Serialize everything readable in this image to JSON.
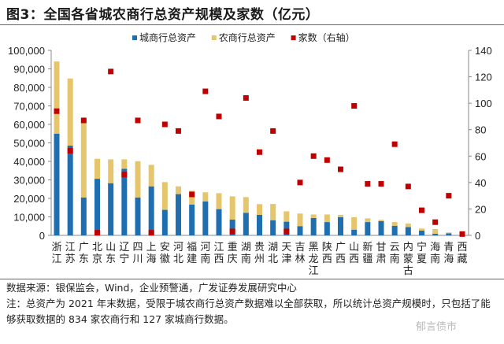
{
  "title": "图3：全国各省城农商行总资产规模及家数（亿元）",
  "source": "数据来源：银保监会，Wind，企业预警通，广发证券发展研究中心",
  "note": "注：总资产为 2021 年末数据，受限于城农商行总资产数据难以全部获取，所以统计总资产规模时，只包括了能够获取数据的 834 家农商行和 127 家城商行数据。",
  "watermark": "郁言债市",
  "chart_data": {
    "type": "bar",
    "stacked": true,
    "categories": [
      "浙江",
      "江苏",
      "广东",
      "北京",
      "山东",
      "辽宁",
      "四川",
      "上海",
      "安徽",
      "河北",
      "福建",
      "河南",
      "江西",
      "重庆",
      "湖南",
      "贵州",
      "湖北",
      "天津",
      "吉林",
      "黑龙江",
      "陕西",
      "广西",
      "山西",
      "新疆",
      "甘肃",
      "云南",
      "内蒙古",
      "宁夏",
      "海南",
      "青海",
      "西藏"
    ],
    "series": [
      {
        "name": "城商行总资产",
        "color": "#1f6eb0",
        "axis": "left",
        "type": "bar",
        "values": [
          55000,
          48500,
          20500,
          30600,
          28200,
          36000,
          20500,
          26500,
          13800,
          22300,
          16700,
          18300,
          14200,
          8500,
          12200,
          11100,
          8200,
          7400,
          5000,
          9400,
          7200,
          9800,
          3100,
          7200,
          7700,
          5200,
          4500,
          2600,
          900,
          1100,
          0
        ]
      },
      {
        "name": "农商行总资产",
        "color": "#e6c66c",
        "axis": "left",
        "type": "bar",
        "values": [
          39000,
          36300,
          41500,
          10800,
          12900,
          5100,
          19600,
          11600,
          15000,
          4200,
          7400,
          5000,
          8600,
          12600,
          8500,
          5800,
          8800,
          5600,
          6800,
          1900,
          4100,
          1300,
          6700,
          2000,
          700,
          2000,
          1900,
          1100,
          2500,
          500,
          300
        ]
      },
      {
        "name": "家数（右轴）",
        "color": "#c00000",
        "axis": "right",
        "type": "scatter",
        "values": [
          94,
          64,
          87,
          2,
          124,
          46,
          87,
          2,
          84,
          79,
          31,
          109,
          90,
          3,
          104,
          63,
          79,
          3,
          40,
          60,
          57,
          50,
          98,
          39,
          39,
          69,
          37,
          19,
          10,
          30,
          1
        ]
      }
    ],
    "left_axis": {
      "ylim": [
        0,
        100000
      ],
      "ticks": [
        "0",
        "10,000",
        "20,000",
        "30,000",
        "40,000",
        "50,000",
        "60,000",
        "70,000",
        "80,000",
        "90,000",
        "100,000"
      ]
    },
    "right_axis": {
      "ylim": [
        0,
        140
      ],
      "ticks": [
        "0",
        "20",
        "40",
        "60",
        "80",
        "100",
        "120",
        "140"
      ]
    },
    "legend": "top-center",
    "grid": false
  }
}
